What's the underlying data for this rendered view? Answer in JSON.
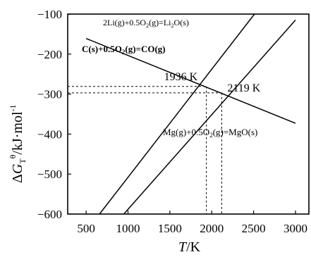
{
  "chart_data": {
    "type": "line",
    "xlabel": {
      "symbol": "T",
      "unit": "/K"
    },
    "ylabel": {
      "symbol": "ΔG",
      "sub": "T",
      "sup": "θ",
      "unit": "/kJ·mol",
      "unit_sup": "-1"
    },
    "xlim": [
      280,
      3160
    ],
    "ylim": [
      -600,
      -100
    ],
    "xticks": [
      500,
      1000,
      1500,
      2000,
      2500,
      3000
    ],
    "yticks": [
      -100,
      -200,
      -300,
      -400,
      -500,
      -600
    ],
    "xtick_labels": [
      "500",
      "1000",
      "1500",
      "2000",
      "2500",
      "3000"
    ],
    "ytick_labels": [
      "−100",
      "−200",
      "−300",
      "−400",
      "−500",
      "−600"
    ],
    "grid": false,
    "series": [
      {
        "name": "C(s)+0.5O₂(g)=CO(g)",
        "x": [
          500,
          3000
        ],
        "y": [
          -161,
          -373
        ]
      },
      {
        "name": "2Li(g)+0.5O₂(g)=Li₂O(s)",
        "x": [
          660,
          2510
        ],
        "y": [
          -600,
          -100
        ]
      },
      {
        "name": "Mg(g)+0.5O₂(g)=MgO(s)",
        "x": [
          950,
          3000
        ],
        "y": [
          -600,
          -115
        ]
      }
    ],
    "annotations": [
      {
        "text": "1936 K",
        "x": 1936,
        "y": -281
      },
      {
        "text": "2119 K",
        "x": 2119,
        "y": -297
      }
    ]
  }
}
